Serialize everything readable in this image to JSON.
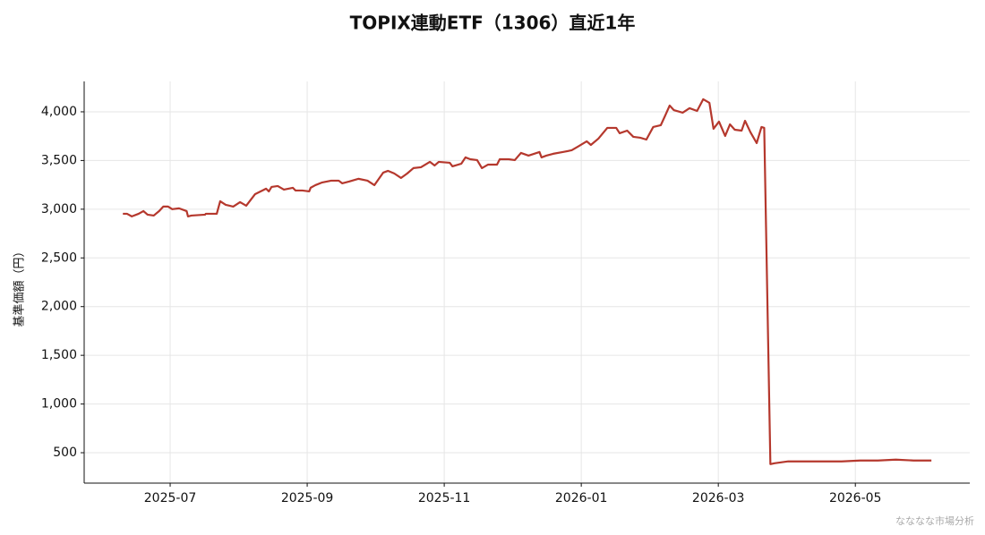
{
  "chart_data": {
    "type": "line",
    "title": "TOPIX連動ETF（1306）直近1年",
    "ylabel": "基準価額（円）",
    "watermark": "なななな市場分析",
    "grid": true,
    "xlim": [
      5.745,
      18.67
    ],
    "xticks": [
      {
        "value": 7,
        "label": "2025-07"
      },
      {
        "value": 9,
        "label": "2025-09"
      },
      {
        "value": 11,
        "label": "2025-11"
      },
      {
        "value": 13,
        "label": "2026-01"
      },
      {
        "value": 15,
        "label": "2026-03"
      },
      {
        "value": 17,
        "label": "2026-05"
      }
    ],
    "ylim": [
      188,
      4312
    ],
    "yticks": [
      500,
      {
        "value": 1000,
        "label": "1,000"
      },
      {
        "value": 1500,
        "label": "1,500"
      },
      {
        "value": 2000,
        "label": "2,000"
      },
      {
        "value": 2500,
        "label": "2,500"
      },
      {
        "value": 3000,
        "label": "3,000"
      },
      {
        "value": 3500,
        "label": "3,500"
      },
      {
        "value": 4000,
        "label": "4,000"
      }
    ],
    "series": [
      {
        "color": "#b5382d",
        "x": [
          6.31,
          6.37,
          6.44,
          6.54,
          6.61,
          6.67,
          6.76,
          6.84,
          6.9,
          6.97,
          7.03,
          7.13,
          7.24,
          7.26,
          7.31,
          7.51,
          7.52,
          7.68,
          7.73,
          7.81,
          7.92,
          8.02,
          8.11,
          8.24,
          8.4,
          8.44,
          8.48,
          8.57,
          8.66,
          8.79,
          8.83,
          8.93,
          9.03,
          9.05,
          9.12,
          9.22,
          9.35,
          9.46,
          9.51,
          9.61,
          9.75,
          9.88,
          9.98,
          10.11,
          10.18,
          10.27,
          10.37,
          10.46,
          10.55,
          10.66,
          10.79,
          10.86,
          10.92,
          11.08,
          11.12,
          11.25,
          11.31,
          11.38,
          11.48,
          11.55,
          11.64,
          11.77,
          11.81,
          11.94,
          12.03,
          12.12,
          12.23,
          12.39,
          12.42,
          12.49,
          12.59,
          12.73,
          12.86,
          12.95,
          13.08,
          13.14,
          13.25,
          13.38,
          13.51,
          13.56,
          13.67,
          13.76,
          13.86,
          13.95,
          14.05,
          14.16,
          14.22,
          14.29,
          14.35,
          14.48,
          14.58,
          14.69,
          14.78,
          14.87,
          14.93,
          15.01,
          15.1,
          15.17,
          15.24,
          15.34,
          15.39,
          15.47,
          15.56,
          15.63,
          15.67,
          15.76,
          15.82,
          16.02,
          16.28,
          16.54,
          16.8,
          17.07,
          17.33,
          17.59,
          17.85,
          18.11
        ],
        "values": [
          2953,
          2953,
          2926,
          2953,
          2981,
          2944,
          2935,
          2981,
          3027,
          3027,
          3000,
          3009,
          2981,
          2926,
          2935,
          2944,
          2953,
          2953,
          3082,
          3045,
          3027,
          3073,
          3036,
          3155,
          3211,
          3183,
          3229,
          3238,
          3201,
          3220,
          3192,
          3192,
          3183,
          3220,
          3247,
          3275,
          3293,
          3293,
          3266,
          3284,
          3312,
          3293,
          3247,
          3376,
          3394,
          3367,
          3321,
          3367,
          3422,
          3431,
          3486,
          3449,
          3486,
          3477,
          3440,
          3468,
          3532,
          3513,
          3504,
          3422,
          3458,
          3458,
          3513,
          3513,
          3504,
          3578,
          3550,
          3587,
          3532,
          3550,
          3569,
          3587,
          3605,
          3642,
          3697,
          3660,
          3725,
          3835,
          3835,
          3780,
          3807,
          3743,
          3734,
          3715,
          3844,
          3862,
          3954,
          4064,
          4018,
          3991,
          4037,
          4009,
          4129,
          4092,
          3826,
          3899,
          3752,
          3871,
          3816,
          3807,
          3908,
          3789,
          3679,
          3844,
          3835,
          383,
          392,
          411,
          411,
          411,
          411,
          420,
          420,
          429,
          420,
          420
        ]
      }
    ]
  }
}
